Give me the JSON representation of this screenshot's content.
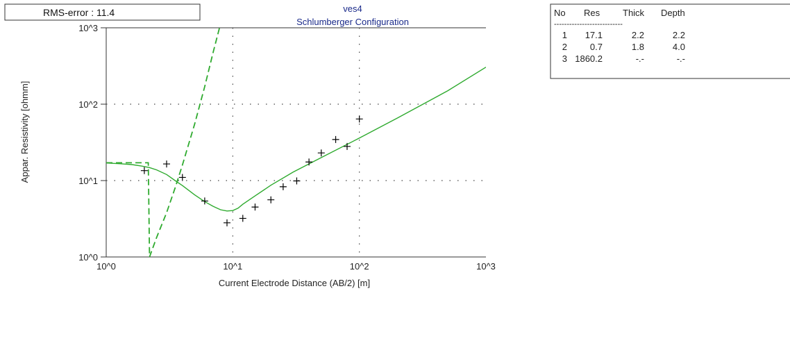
{
  "rms_label": "RMS-error : 11.4",
  "chart_data": {
    "type": "line",
    "title": "ves4",
    "subtitle": "Schlumberger Configuration",
    "xlabel": "Current Electrode Distance (AB/2) [m]",
    "ylabel": "Appar. Resistivity [ohmm]",
    "x_scale": "log",
    "y_scale": "log",
    "xlim": [
      1,
      1000
    ],
    "ylim": [
      1,
      1000
    ],
    "x_tick_labels": [
      "10^0",
      "10^1",
      "10^2",
      "10^3"
    ],
    "y_tick_labels": [
      "10^0",
      "10^1",
      "10^2",
      "10^3"
    ],
    "grid": "dotted",
    "series": [
      {
        "style": "solid",
        "color": "#2eaa2e",
        "x": [
          1.0,
          1.3,
          1.6,
          1.9,
          2.2,
          2.5,
          3.0,
          3.5,
          4.0,
          5.0,
          6.0,
          7.0,
          8.0,
          9.0,
          10.0,
          11.0,
          12.0,
          15.0,
          20.0,
          30.0,
          50.0,
          100.0,
          200.0,
          500.0,
          1000.0
        ],
        "y": [
          17.0,
          16.6,
          16.2,
          15.5,
          14.8,
          13.8,
          12.0,
          10.0,
          8.6,
          6.5,
          5.3,
          4.6,
          4.15,
          4.0,
          4.05,
          4.35,
          4.9,
          6.3,
          8.7,
          12.9,
          20.0,
          36.0,
          66.0,
          150.0,
          305.0
        ]
      },
      {
        "style": "dashed",
        "color": "#2eaa2e",
        "x": [
          1.0,
          1.9,
          2.05,
          2.15,
          2.2,
          2.5,
          3.0,
          3.5,
          4.0,
          5.0,
          6.0,
          7.0,
          7.85
        ],
        "y": [
          17.1,
          17.1,
          17.1,
          17.1,
          1.0,
          1.8,
          3.8,
          8.0,
          16.0,
          55.0,
          170.0,
          480.0,
          1000.0
        ]
      },
      {
        "style": "markers",
        "marker": "+",
        "x": [
          2.0,
          3.0,
          4.0,
          6.0,
          9.0,
          12.0,
          15.0,
          20.0,
          25.0,
          32.0,
          40.0,
          50.0,
          65.0,
          80.0,
          100.0
        ],
        "y": [
          13.5,
          16.5,
          11.0,
          5.4,
          2.8,
          3.2,
          4.5,
          5.6,
          8.3,
          9.9,
          17.5,
          23.0,
          34.5,
          28.0,
          64.0
        ]
      }
    ]
  },
  "layer_table": {
    "headers": [
      "No",
      "Res",
      "Thick",
      "Depth"
    ],
    "separator": "---------------------------",
    "rows": [
      [
        "1",
        "17.1",
        "2.2",
        "2.2"
      ],
      [
        "2",
        "0.7",
        "1.8",
        "4.0"
      ],
      [
        "3",
        "1860.2",
        "-.-",
        "-.-"
      ]
    ]
  }
}
